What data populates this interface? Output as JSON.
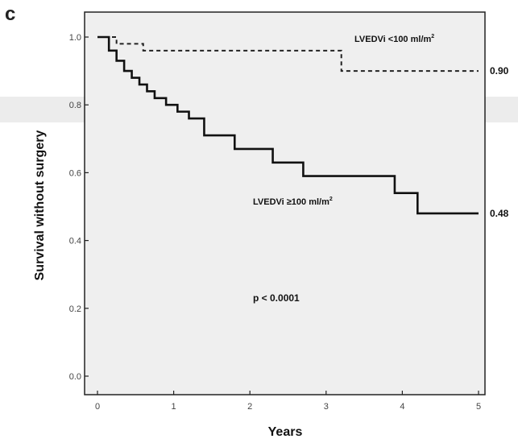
{
  "panel_label": "c",
  "chart_data": {
    "type": "line",
    "title": "",
    "xlabel": "Years",
    "ylabel": "Survival without surgery",
    "xlim": [
      0,
      5
    ],
    "ylim": [
      0,
      1.0
    ],
    "x_ticks": [
      "0",
      "1",
      "2",
      "3",
      "4",
      "5"
    ],
    "y_ticks": [
      "0.0",
      "0.2",
      "0.4",
      "0.6",
      "0.8",
      "1.0"
    ],
    "grid": false,
    "step": true,
    "background": "#efefef",
    "series": [
      {
        "name": "LVEDVi <100 ml/m²",
        "name_html": "LVEDVi <100 ml/m<sup>2</sup>",
        "style": "dashed",
        "color": "#222222",
        "x": [
          0,
          0.25,
          0.6,
          3.2,
          5
        ],
        "y": [
          1.0,
          0.98,
          0.96,
          0.9,
          0.9
        ],
        "end_label": "0.90"
      },
      {
        "name": "LVEDVi ≥100 ml/m²",
        "style": "solid",
        "color": "#111111",
        "x": [
          0,
          0.15,
          0.25,
          0.35,
          0.45,
          0.55,
          0.65,
          0.75,
          0.9,
          1.05,
          1.2,
          1.4,
          1.8,
          2.3,
          2.7,
          3.9,
          4.2,
          5
        ],
        "y": [
          1.0,
          0.96,
          0.93,
          0.9,
          0.88,
          0.86,
          0.84,
          0.82,
          0.8,
          0.78,
          0.76,
          0.71,
          0.67,
          0.63,
          0.59,
          0.54,
          0.48,
          0.48
        ],
        "end_label": "0.48"
      }
    ],
    "annotations": {
      "p_value": "p < 0.0001"
    }
  }
}
